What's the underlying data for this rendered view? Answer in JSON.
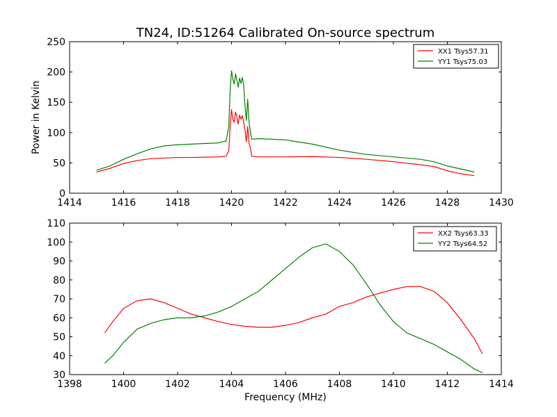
{
  "chart_data": [
    {
      "type": "line",
      "title": "TN24, ID:51264 Calibrated On-source spectrum",
      "xlabel": "",
      "ylabel": "Power in Kelvin",
      "xlim": [
        1414,
        1430
      ],
      "ylim": [
        0,
        250
      ],
      "xticks": [
        1414,
        1416,
        1418,
        1420,
        1422,
        1424,
        1426,
        1428,
        1430
      ],
      "yticks": [
        0,
        50,
        100,
        150,
        200,
        250
      ],
      "grid": false,
      "legend": "top-right",
      "series": [
        {
          "name": "XX1 Tsys57.31",
          "color": "#ff0000",
          "points": [
            [
              1415.0,
              35
            ],
            [
              1415.5,
              41
            ],
            [
              1416.0,
              49
            ],
            [
              1416.5,
              54
            ],
            [
              1417.0,
              57
            ],
            [
              1417.5,
              58
            ],
            [
              1418.0,
              59
            ],
            [
              1418.5,
              59
            ],
            [
              1419.0,
              59.5
            ],
            [
              1419.5,
              60
            ],
            [
              1419.8,
              61
            ],
            [
              1419.9,
              70
            ],
            [
              1419.95,
              110
            ],
            [
              1420.0,
              138
            ],
            [
              1420.05,
              122
            ],
            [
              1420.1,
              117
            ],
            [
              1420.15,
              134
            ],
            [
              1420.2,
              126
            ],
            [
              1420.25,
              114
            ],
            [
              1420.3,
              129
            ],
            [
              1420.35,
              122
            ],
            [
              1420.4,
              128
            ],
            [
              1420.45,
              118
            ],
            [
              1420.5,
              104
            ],
            [
              1420.55,
              85
            ],
            [
              1420.6,
              110
            ],
            [
              1420.65,
              82
            ],
            [
              1420.7,
              75
            ],
            [
              1420.75,
              61
            ],
            [
              1421.0,
              60
            ],
            [
              1421.5,
              60
            ],
            [
              1422.0,
              60
            ],
            [
              1423.0,
              60.5
            ],
            [
              1424.0,
              59
            ],
            [
              1425.0,
              56
            ],
            [
              1426.0,
              52
            ],
            [
              1427.0,
              47
            ],
            [
              1427.5,
              44
            ],
            [
              1428.0,
              37
            ],
            [
              1428.5,
              32
            ],
            [
              1429.0,
              29
            ]
          ]
        },
        {
          "name": "YY1 Tsys75.03",
          "color": "#008000",
          "points": [
            [
              1415.0,
              38
            ],
            [
              1415.5,
              45
            ],
            [
              1416.0,
              56
            ],
            [
              1416.5,
              65
            ],
            [
              1417.0,
              73
            ],
            [
              1417.5,
              78
            ],
            [
              1418.0,
              80
            ],
            [
              1418.5,
              81
            ],
            [
              1419.0,
              82
            ],
            [
              1419.5,
              83
            ],
            [
              1419.8,
              86
            ],
            [
              1419.9,
              110
            ],
            [
              1419.95,
              170
            ],
            [
              1420.0,
              202
            ],
            [
              1420.05,
              188
            ],
            [
              1420.1,
              180
            ],
            [
              1420.15,
              197
            ],
            [
              1420.2,
              186
            ],
            [
              1420.25,
              175
            ],
            [
              1420.3,
              190
            ],
            [
              1420.35,
              181
            ],
            [
              1420.4,
              191
            ],
            [
              1420.45,
              179
            ],
            [
              1420.5,
              145
            ],
            [
              1420.55,
              120
            ],
            [
              1420.6,
              155
            ],
            [
              1420.65,
              118
            ],
            [
              1420.7,
              100
            ],
            [
              1420.75,
              89
            ],
            [
              1421.0,
              90
            ],
            [
              1421.5,
              89
            ],
            [
              1422.0,
              88
            ],
            [
              1423.0,
              81
            ],
            [
              1424.0,
              71
            ],
            [
              1425.0,
              64
            ],
            [
              1426.0,
              60
            ],
            [
              1427.0,
              56
            ],
            [
              1427.5,
              52
            ],
            [
              1428.0,
              45
            ],
            [
              1428.5,
              40
            ],
            [
              1429.0,
              35
            ]
          ]
        }
      ]
    },
    {
      "type": "line",
      "title": "",
      "xlabel": "Frequency (MHz)",
      "ylabel": "",
      "xlim": [
        1398,
        1414
      ],
      "ylim": [
        30,
        110
      ],
      "xticks": [
        1398,
        1400,
        1402,
        1404,
        1406,
        1408,
        1410,
        1412,
        1414
      ],
      "yticks": [
        30,
        40,
        50,
        60,
        70,
        80,
        90,
        100,
        110
      ],
      "grid": false,
      "legend": "top-right",
      "series": [
        {
          "name": "XX2 Tsys63.33",
          "color": "#ff0000",
          "points": [
            [
              1399.3,
              52
            ],
            [
              1399.6,
              58
            ],
            [
              1400.0,
              65
            ],
            [
              1400.5,
              69
            ],
            [
              1401.0,
              70
            ],
            [
              1401.5,
              68
            ],
            [
              1402.0,
              65
            ],
            [
              1402.5,
              62
            ],
            [
              1403.0,
              60
            ],
            [
              1403.5,
              58
            ],
            [
              1404.0,
              56.5
            ],
            [
              1404.5,
              55.5
            ],
            [
              1405.0,
              55
            ],
            [
              1405.5,
              55
            ],
            [
              1406.0,
              56
            ],
            [
              1406.5,
              57.5
            ],
            [
              1407.0,
              60
            ],
            [
              1407.5,
              62
            ],
            [
              1408.0,
              66
            ],
            [
              1408.5,
              68
            ],
            [
              1409.0,
              71
            ],
            [
              1409.5,
              73
            ],
            [
              1410.0,
              75
            ],
            [
              1410.5,
              76.5
            ],
            [
              1411.0,
              76.5
            ],
            [
              1411.5,
              74
            ],
            [
              1412.0,
              68
            ],
            [
              1412.5,
              59
            ],
            [
              1413.0,
              49
            ],
            [
              1413.3,
              41
            ]
          ]
        },
        {
          "name": "YY2 Tsys64.52",
          "color": "#008000",
          "points": [
            [
              1399.3,
              36
            ],
            [
              1399.6,
              40
            ],
            [
              1400.0,
              47
            ],
            [
              1400.5,
              54
            ],
            [
              1401.0,
              57
            ],
            [
              1401.5,
              59
            ],
            [
              1402.0,
              60
            ],
            [
              1402.5,
              60
            ],
            [
              1403.0,
              61
            ],
            [
              1403.5,
              63
            ],
            [
              1404.0,
              66
            ],
            [
              1404.5,
              70
            ],
            [
              1405.0,
              74
            ],
            [
              1405.5,
              80
            ],
            [
              1406.0,
              86
            ],
            [
              1406.5,
              92
            ],
            [
              1407.0,
              97
            ],
            [
              1407.5,
              99
            ],
            [
              1408.0,
              95
            ],
            [
              1408.5,
              88
            ],
            [
              1409.0,
              78
            ],
            [
              1409.5,
              67
            ],
            [
              1410.0,
              58
            ],
            [
              1410.5,
              52
            ],
            [
              1411.0,
              49
            ],
            [
              1411.5,
              46
            ],
            [
              1412.0,
              42
            ],
            [
              1412.5,
              38
            ],
            [
              1413.0,
              33
            ],
            [
              1413.3,
              31
            ]
          ]
        }
      ]
    }
  ]
}
